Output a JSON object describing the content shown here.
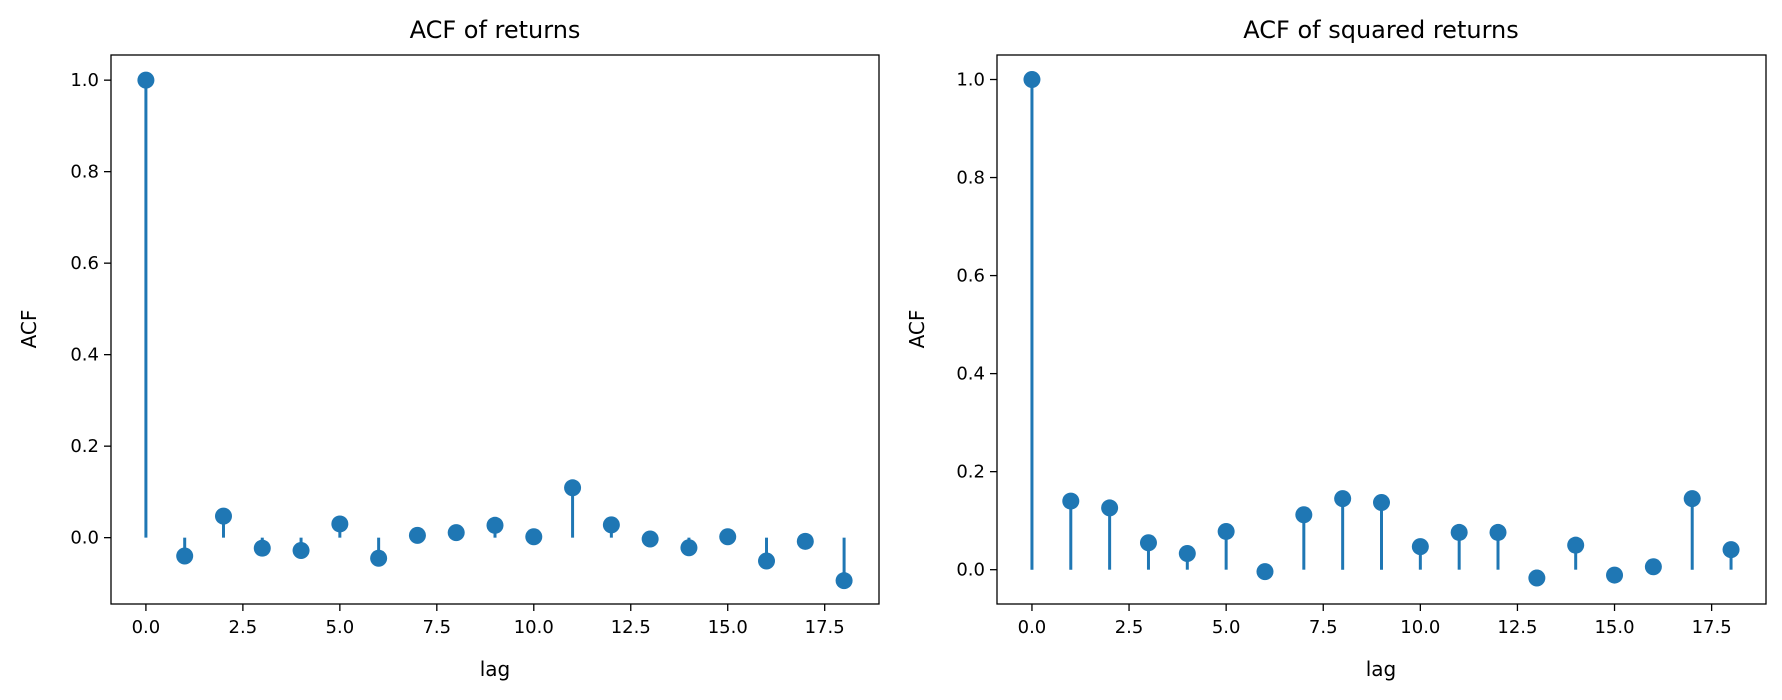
{
  "chart_data": [
    {
      "type": "stem",
      "title": "ACF of returns",
      "xlabel": "lag",
      "ylabel": "ACF",
      "xlim": [
        -0.9,
        18.9
      ],
      "ylim": [
        -0.145,
        1.055
      ],
      "xticks": [
        0.0,
        2.5,
        5.0,
        7.5,
        10.0,
        12.5,
        15.0,
        17.5
      ],
      "xtick_labels": [
        "0.0",
        "2.5",
        "5.0",
        "7.5",
        "10.0",
        "12.5",
        "15.0",
        "17.5"
      ],
      "yticks": [
        0.0,
        0.2,
        0.4,
        0.6,
        0.8,
        1.0
      ],
      "ytick_labels": [
        "0.0",
        "0.2",
        "0.4",
        "0.6",
        "0.8",
        "1.0"
      ],
      "grid": false,
      "color": "#1f77b4",
      "x": [
        0,
        1,
        2,
        3,
        4,
        5,
        6,
        7,
        8,
        9,
        10,
        11,
        12,
        13,
        14,
        15,
        16,
        17,
        18
      ],
      "values": [
        1.0,
        -0.04,
        0.047,
        -0.023,
        -0.028,
        0.03,
        -0.045,
        0.005,
        0.011,
        0.027,
        0.002,
        0.109,
        0.028,
        -0.003,
        -0.022,
        0.002,
        -0.051,
        -0.008,
        -0.094
      ]
    },
    {
      "type": "stem",
      "title": "ACF of squared returns",
      "xlabel": "lag",
      "ylabel": "ACF",
      "xlim": [
        -0.9,
        18.9
      ],
      "ylim": [
        -0.07,
        1.05
      ],
      "xticks": [
        0.0,
        2.5,
        5.0,
        7.5,
        10.0,
        12.5,
        15.0,
        17.5
      ],
      "xtick_labels": [
        "0.0",
        "2.5",
        "5.0",
        "7.5",
        "10.0",
        "12.5",
        "15.0",
        "17.5"
      ],
      "yticks": [
        0.0,
        0.2,
        0.4,
        0.6,
        0.8,
        1.0
      ],
      "ytick_labels": [
        "0.0",
        "0.2",
        "0.4",
        "0.6",
        "0.8",
        "1.0"
      ],
      "grid": false,
      "color": "#1f77b4",
      "x": [
        0,
        1,
        2,
        3,
        4,
        5,
        6,
        7,
        8,
        9,
        10,
        11,
        12,
        13,
        14,
        15,
        16,
        17,
        18
      ],
      "values": [
        1.0,
        0.14,
        0.126,
        0.055,
        0.033,
        0.078,
        -0.004,
        0.112,
        0.145,
        0.137,
        0.047,
        0.076,
        0.076,
        -0.017,
        0.05,
        -0.011,
        0.006,
        0.145,
        0.041
      ]
    }
  ]
}
